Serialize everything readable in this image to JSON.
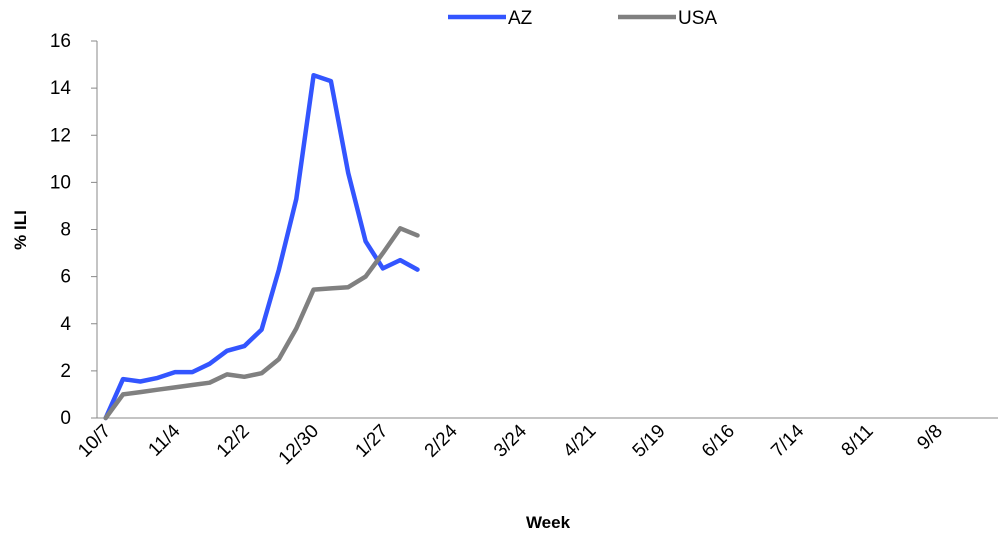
{
  "chart_data": {
    "type": "line",
    "title": "",
    "xlabel": "Week",
    "ylabel": "% ILI",
    "ylim": [
      0,
      16
    ],
    "yticks": [
      0,
      2,
      4,
      6,
      8,
      10,
      12,
      14,
      16
    ],
    "grid": false,
    "legend_position": "top",
    "x_tick_labels": [
      "10/7",
      "11/4",
      "12/2",
      "12/30",
      "1/27",
      "2/24",
      "3/24",
      "4/21",
      "5/19",
      "6/16",
      "7/14",
      "8/11",
      "9/8"
    ],
    "total_weeks": 52,
    "series": [
      {
        "name": "AZ",
        "color": "#3355ff",
        "values": [
          0,
          1.65,
          1.55,
          1.7,
          1.95,
          1.95,
          2.3,
          2.85,
          3.05,
          3.75,
          6.3,
          9.3,
          14.55,
          14.3,
          10.4,
          7.5,
          6.35,
          6.7,
          6.3
        ]
      },
      {
        "name": "USA",
        "color": "#808080",
        "values": [
          0,
          1.0,
          1.1,
          1.2,
          1.3,
          1.4,
          1.5,
          1.85,
          1.75,
          1.9,
          2.5,
          3.8,
          5.45,
          5.5,
          5.55,
          6.0,
          7.0,
          8.05,
          7.75
        ]
      }
    ]
  }
}
